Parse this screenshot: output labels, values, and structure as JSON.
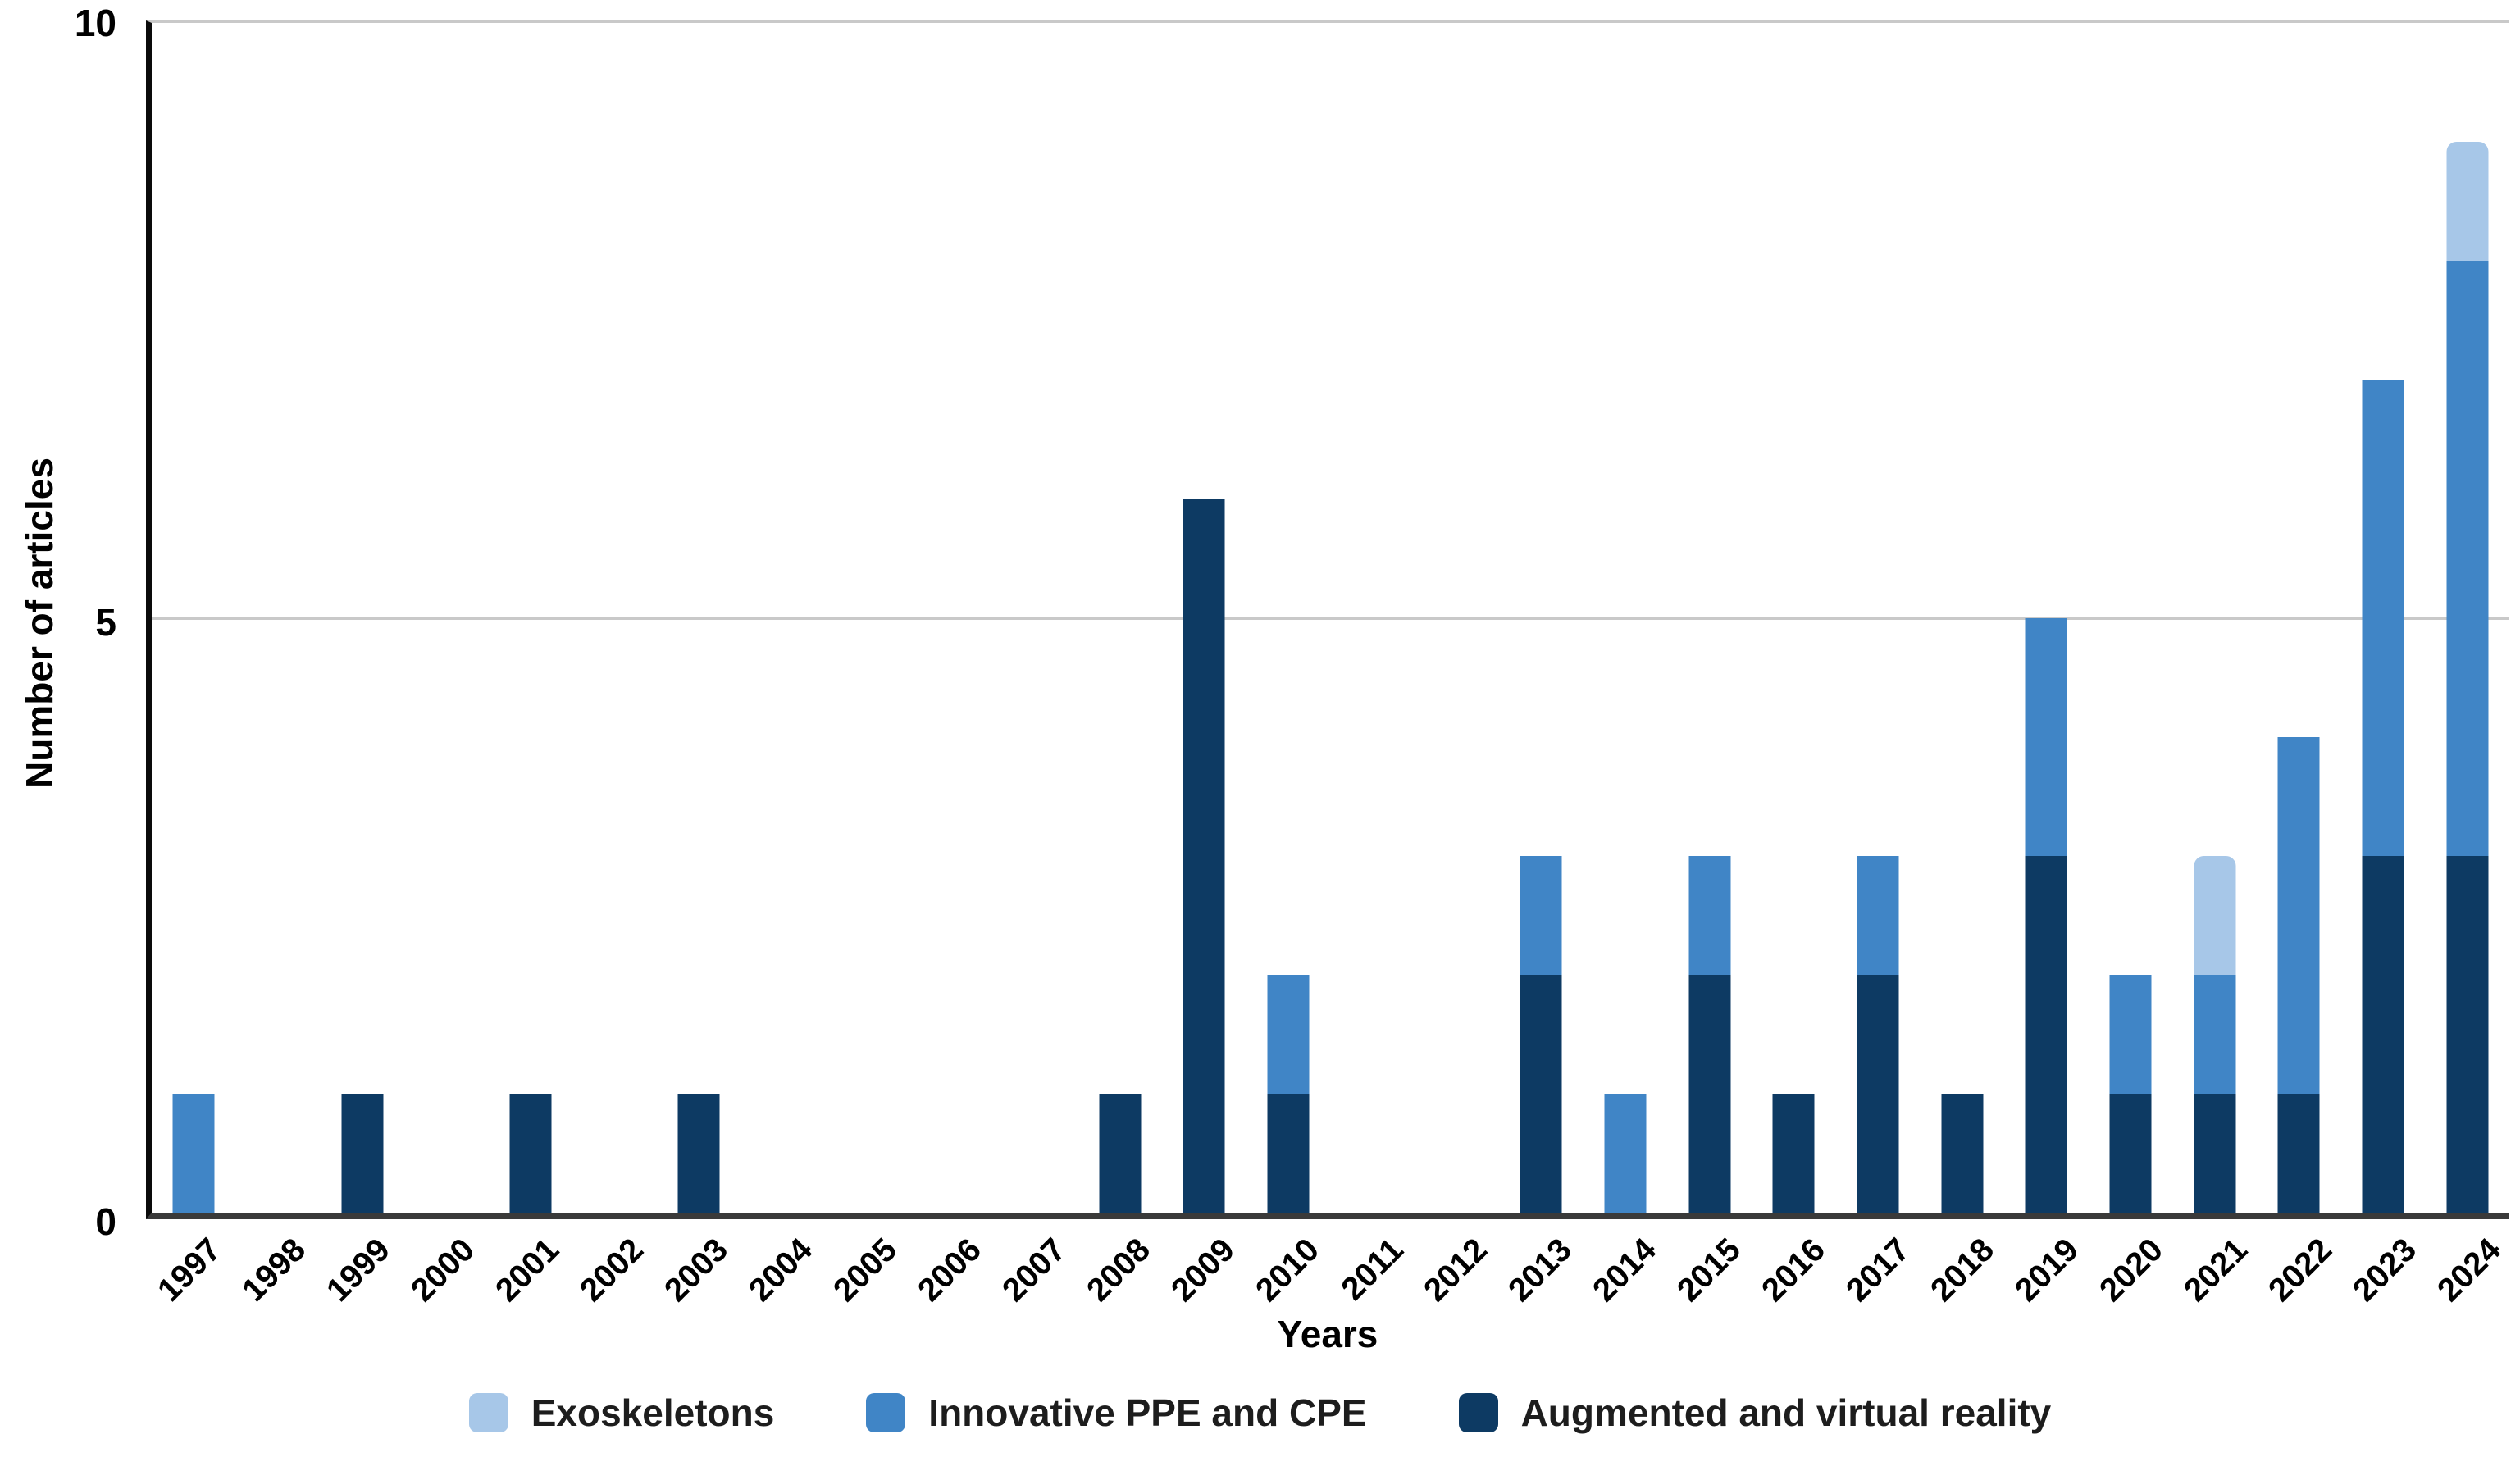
{
  "chart_data": {
    "type": "bar",
    "stacked": true,
    "title": "",
    "xlabel": "Years",
    "ylabel": "Number of articles",
    "ylim": [
      0,
      10
    ],
    "yticks": [
      0,
      5,
      10
    ],
    "grid": "horizontal gridline at 5, light top border at 10",
    "legend_position": "bottom-center",
    "axis_colors": {
      "y_axis": "#0a0a0a",
      "x_axis": "#3a3a3a",
      "gridline": "#c9c9c9"
    },
    "categories": [
      "1997",
      "1998",
      "1999",
      "2000",
      "2001",
      "2002",
      "2003",
      "2004",
      "2005",
      "2006",
      "2007",
      "2008",
      "2009",
      "2010",
      "2011",
      "2012",
      "2013",
      "2014",
      "2015",
      "2016",
      "2017",
      "2018",
      "2019",
      "2020",
      "2021",
      "2022",
      "2023",
      "2024"
    ],
    "series": [
      {
        "name": "Exoskeletons",
        "color": "#a7c7e8",
        "rounded_top": true,
        "values": [
          0,
          0,
          0,
          0,
          0,
          0,
          0,
          0,
          0,
          0,
          0,
          0,
          0,
          0,
          0,
          0,
          0,
          0,
          0,
          0,
          0,
          0,
          0,
          0,
          1,
          0,
          0,
          1
        ]
      },
      {
        "name": "Innovative PPE and CPE",
        "color": "#4085c6",
        "rounded_top": false,
        "values": [
          1,
          0,
          0,
          0,
          0,
          0,
          0,
          0,
          0,
          0,
          0,
          0,
          0,
          1,
          0,
          0,
          1,
          1,
          1,
          0,
          1,
          0,
          2,
          1,
          1,
          3,
          4,
          5
        ]
      },
      {
        "name": "Augmented and virtual reality",
        "color": "#0d3a63",
        "rounded_top": false,
        "values": [
          0,
          0,
          1,
          0,
          1,
          0,
          1,
          0,
          0,
          0,
          0,
          1,
          6,
          1,
          0,
          0,
          2,
          0,
          2,
          1,
          2,
          1,
          3,
          1,
          1,
          1,
          3,
          3
        ]
      }
    ]
  }
}
